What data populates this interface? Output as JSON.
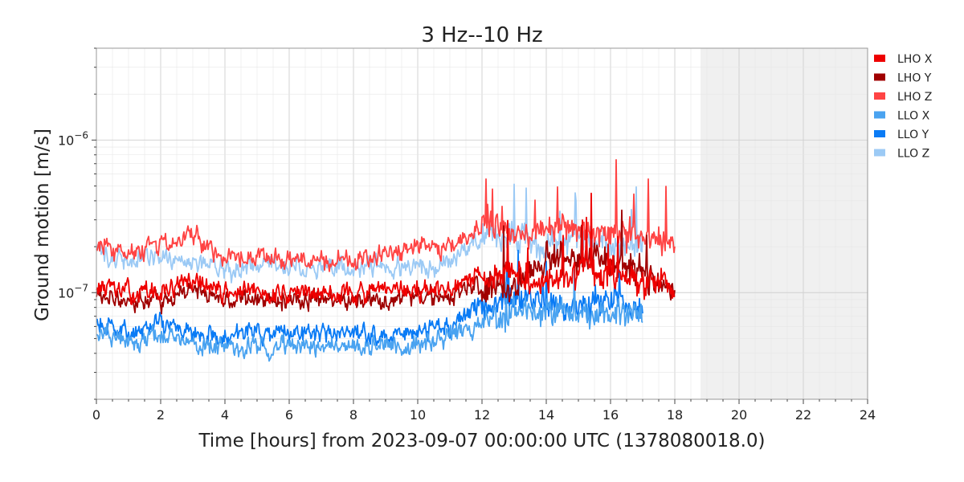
{
  "chart_data": {
    "type": "line",
    "title": "3 Hz--10 Hz",
    "xlabel": "Time [hours] from 2023-09-07 00:00:00 UTC (1378080018.0)",
    "ylabel": "Ground motion [m/s]",
    "xlim": [
      0,
      24
    ],
    "ylim": [
      2e-08,
      4e-06
    ],
    "yscale": "log",
    "grid": true,
    "legend_position": "outside-top-right",
    "x_ticks": [
      0,
      2,
      4,
      6,
      8,
      10,
      12,
      14,
      16,
      18,
      20,
      22,
      24
    ],
    "x_tick_labels": [
      "0",
      "2",
      "4",
      "6",
      "8",
      "10",
      "12",
      "14",
      "16",
      "18",
      "20",
      "22",
      "24"
    ],
    "y_ticks": [
      1e-07,
      1e-06
    ],
    "y_tick_labels": [
      {
        "base": "10",
        "exp": "−7"
      },
      {
        "base": "10",
        "exp": "−6"
      }
    ],
    "shaded_region": {
      "x_start": 18.8,
      "x_end": 24,
      "color": "#f0f0f0"
    },
    "series": [
      {
        "name": "LHO X",
        "color": "#ee0000",
        "x": [
          0,
          1,
          2,
          3,
          4,
          5,
          6,
          7,
          8,
          9,
          10,
          11,
          12,
          13,
          14,
          15,
          16,
          17,
          18
        ],
        "values": [
          1.1e-07,
          1e-07,
          1e-07,
          1.2e-07,
          1e-07,
          1e-07,
          1e-07,
          1e-07,
          1e-07,
          1e-07,
          1.05e-07,
          1e-07,
          1.3e-07,
          1.3e-07,
          1.2e-07,
          1.3e-07,
          1.3e-07,
          1.2e-07,
          1.1e-07
        ]
      },
      {
        "name": "LHO Y",
        "color": "#a00000",
        "x": [
          0,
          1,
          2,
          3,
          4,
          5,
          6,
          7,
          8,
          9,
          10,
          11,
          12,
          13,
          14,
          15,
          16,
          17,
          18
        ],
        "values": [
          9.5e-08,
          9e-08,
          9e-08,
          1.1e-07,
          9e-08,
          9e-08,
          9e-08,
          9e-08,
          9e-08,
          9e-08,
          9.5e-08,
          9.5e-08,
          1.15e-07,
          1.1e-07,
          1.7e-07,
          1.6e-07,
          1.7e-07,
          1.3e-07,
          1e-07
        ]
      },
      {
        "name": "LHO Z",
        "color": "#ff4444",
        "x": [
          0,
          1,
          2,
          3,
          4,
          5,
          6,
          7,
          8,
          9,
          10,
          11,
          12,
          13,
          14,
          15,
          16,
          17,
          18
        ],
        "values": [
          2.1e-07,
          1.8e-07,
          2e-07,
          2.4e-07,
          1.7e-07,
          1.7e-07,
          1.7e-07,
          1.65e-07,
          1.65e-07,
          1.7e-07,
          2e-07,
          2e-07,
          2.7e-07,
          2.5e-07,
          2.5e-07,
          2.6e-07,
          2.5e-07,
          2.3e-07,
          2e-07
        ]
      },
      {
        "name": "LLO X",
        "color": "#4aa3f0",
        "x": [
          0,
          1,
          2,
          3,
          4,
          5,
          6,
          7,
          8,
          9,
          10,
          11,
          12,
          13,
          14,
          15,
          16,
          17
        ],
        "values": [
          5.5e-08,
          4.5e-08,
          5.5e-08,
          4.5e-08,
          4.5e-08,
          4.5e-08,
          4.5e-08,
          4.6e-08,
          4.5e-08,
          4.5e-08,
          4.8e-08,
          5e-08,
          6.5e-08,
          7.5e-08,
          7.5e-08,
          7e-08,
          7.5e-08,
          7e-08
        ]
      },
      {
        "name": "LLO Y",
        "color": "#0a7bf5",
        "x": [
          0,
          1,
          2,
          3,
          4,
          5,
          6,
          7,
          8,
          9,
          10,
          11,
          12,
          13,
          14,
          15,
          16,
          17
        ],
        "values": [
          6.5e-08,
          5.5e-08,
          6.5e-08,
          5.5e-08,
          5.2e-08,
          5.5e-08,
          5.3e-08,
          5.5e-08,
          5.3e-08,
          5.3e-08,
          5.5e-08,
          6e-08,
          8.5e-08,
          9e-08,
          8.5e-08,
          8.5e-08,
          9e-08,
          8.5e-08
        ]
      },
      {
        "name": "LLO Z",
        "color": "#9ccaf5",
        "x": [
          0,
          1,
          2,
          3,
          4,
          5,
          6,
          7,
          8,
          9,
          10,
          11,
          12,
          13,
          14,
          15,
          16,
          17
        ],
        "values": [
          1.8e-07,
          1.6e-07,
          1.7e-07,
          1.6e-07,
          1.4e-07,
          1.5e-07,
          1.5e-07,
          1.5e-07,
          1.45e-07,
          1.45e-07,
          1.5e-07,
          1.6e-07,
          2.4e-07,
          2.3e-07,
          2e-07,
          2.3e-07,
          2.2e-07,
          2.1e-07
        ]
      }
    ]
  }
}
